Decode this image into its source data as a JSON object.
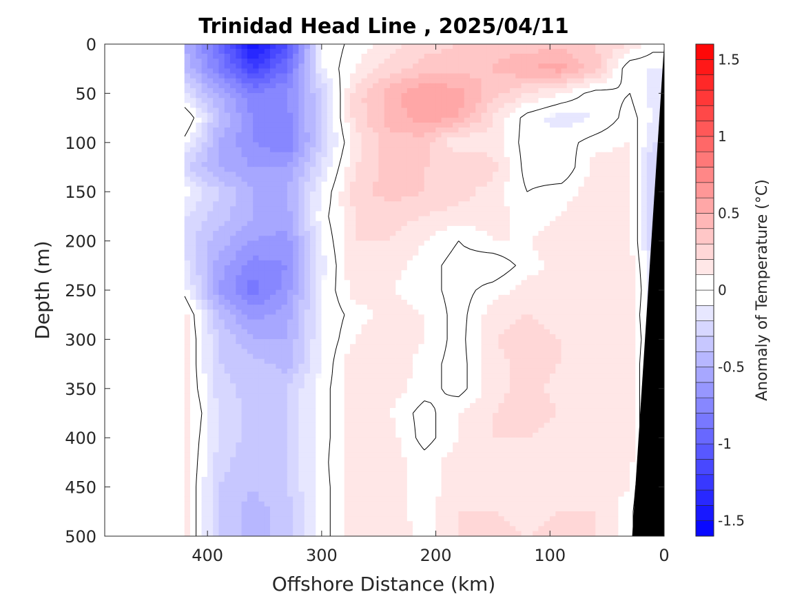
{
  "chart_data": {
    "type": "heatmap",
    "title": "Trinidad Head Line , 2025/04/11",
    "xlabel": "Offshore Distance (km)",
    "ylabel": "Depth (m)",
    "xlim": [
      490,
      0
    ],
    "ylim": [
      0,
      500
    ],
    "x_reversed": true,
    "y_reversed": true,
    "x_ticks": [
      400,
      300,
      200,
      100,
      0
    ],
    "y_ticks": [
      0,
      50,
      100,
      150,
      200,
      250,
      300,
      350,
      400,
      450,
      500
    ],
    "colorbar": {
      "label": "Anomaly of Temperature (°C)",
      "range": [
        -1.6,
        1.6
      ],
      "step": 0.1,
      "ticks": [
        -1.5,
        -1,
        -0.5,
        0,
        0.5,
        1,
        1.5
      ],
      "tick_labels": [
        "-1.5",
        "-1",
        "-0.5",
        "0",
        "0.5",
        "1",
        "1.5"
      ],
      "colormap": "blue-white-red"
    },
    "x": [
      420,
      390,
      360,
      330,
      300,
      270,
      240,
      210,
      180,
      150,
      120,
      90,
      60,
      30,
      10
    ],
    "y": [
      0,
      25,
      50,
      75,
      100,
      125,
      150,
      175,
      200,
      225,
      250,
      275,
      300,
      325,
      350,
      375,
      400,
      425,
      450,
      475,
      500
    ],
    "z": [
      [
        -0.5,
        -0.9,
        -1.5,
        -1.1,
        -0.1,
        0.05,
        0.15,
        0.25,
        0.3,
        0.35,
        0.35,
        0.35,
        0.3,
        0.2,
        0.05
      ],
      [
        -0.4,
        -0.8,
        -1.2,
        -0.9,
        -0.1,
        0.1,
        0.25,
        0.35,
        0.35,
        0.4,
        0.5,
        0.55,
        0.35,
        -0.1,
        -0.1
      ],
      [
        -0.2,
        -0.5,
        -0.8,
        -0.7,
        -0.3,
        0.25,
        0.45,
        0.6,
        0.55,
        0.35,
        0.2,
        0.1,
        -0.05,
        0.0,
        -0.15
      ],
      [
        0.15,
        -0.4,
        -0.7,
        -0.75,
        -0.3,
        0.25,
        0.45,
        0.55,
        0.5,
        0.2,
        -0.05,
        -0.15,
        -0.1,
        0.05,
        -0.1
      ],
      [
        -0.05,
        -0.5,
        -0.7,
        -0.8,
        -0.3,
        0.15,
        0.35,
        0.35,
        0.1,
        0.15,
        -0.05,
        -0.05,
        0.05,
        0.1,
        -0.2
      ],
      [
        -0.3,
        -0.5,
        -0.6,
        -0.6,
        -0.2,
        0.2,
        0.35,
        0.3,
        0.3,
        0.25,
        -0.05,
        -0.1,
        0.15,
        0.15,
        -0.3
      ],
      [
        -0.05,
        -0.3,
        -0.5,
        -0.5,
        -0.1,
        0.25,
        0.35,
        0.3,
        0.25,
        0.15,
        0.0,
        0.05,
        0.15,
        0.15,
        -0.3
      ],
      [
        -0.2,
        -0.35,
        -0.5,
        -0.55,
        -0.05,
        0.2,
        0.25,
        0.2,
        0.15,
        0.15,
        0.05,
        0.1,
        0.2,
        0.15,
        -0.3
      ],
      [
        -0.25,
        -0.45,
        -0.6,
        -0.65,
        -0.1,
        0.2,
        0.2,
        0.1,
        0.0,
        0.1,
        0.1,
        0.15,
        0.2,
        0.15,
        -0.3
      ],
      [
        -0.15,
        -0.55,
        -0.75,
        -0.7,
        -0.15,
        0.2,
        0.15,
        0.05,
        -0.05,
        -0.1,
        0.05,
        0.15,
        0.2,
        0.15,
        -0.2
      ],
      [
        -0.05,
        -0.6,
        -0.85,
        -0.65,
        -0.1,
        0.15,
        0.1,
        0.05,
        -0.05,
        0.05,
        0.15,
        0.15,
        0.2,
        0.2,
        -0.2
      ],
      [
        0.15,
        -0.4,
        -0.65,
        -0.55,
        -0.1,
        0.05,
        0.15,
        0.1,
        -0.05,
        0.15,
        0.2,
        0.15,
        0.15,
        0.15,
        -0.2
      ],
      [
        0.15,
        -0.3,
        -0.5,
        -0.5,
        -0.1,
        0.1,
        0.2,
        0.1,
        -0.05,
        0.2,
        0.25,
        0.2,
        0.15,
        0.15,
        -0.15
      ],
      [
        0.15,
        -0.3,
        -0.35,
        -0.45,
        -0.1,
        0.2,
        0.2,
        0.05,
        -0.05,
        0.15,
        0.25,
        0.2,
        0.15,
        0.15,
        -0.2
      ],
      [
        0.15,
        -0.25,
        -0.35,
        -0.3,
        -0.05,
        0.15,
        0.15,
        0.05,
        -0.05,
        0.15,
        0.25,
        0.15,
        0.15,
        0.15,
        -0.2
      ],
      [
        0.2,
        -0.2,
        -0.35,
        -0.3,
        -0.05,
        0.15,
        0.1,
        -0.05,
        0.1,
        0.2,
        0.25,
        0.2,
        0.15,
        0.15,
        -0.2
      ],
      [
        0.15,
        -0.2,
        -0.35,
        -0.3,
        -0.05,
        0.15,
        0.15,
        -0.05,
        0.1,
        0.2,
        0.2,
        0.15,
        0.15,
        0.15,
        -0.2
      ],
      [
        0.15,
        -0.25,
        -0.4,
        -0.3,
        -0.05,
        0.2,
        0.15,
        0.05,
        0.15,
        0.2,
        0.15,
        0.2,
        0.15,
        0.15,
        -0.25
      ],
      [
        0.15,
        -0.3,
        -0.4,
        -0.3,
        -0.05,
        0.15,
        0.15,
        0.05,
        0.15,
        0.2,
        0.2,
        0.2,
        0.15,
        0.1,
        -0.3
      ],
      [
        0.15,
        -0.3,
        -0.45,
        -0.35,
        -0.05,
        0.15,
        0.15,
        0.05,
        0.2,
        0.2,
        0.15,
        0.2,
        0.2,
        0.05,
        -0.3
      ],
      [
        0.15,
        -0.3,
        -0.45,
        -0.35,
        -0.05,
        0.15,
        0.2,
        0.05,
        0.2,
        0.25,
        0.2,
        0.25,
        0.2,
        0.05,
        -0.3
      ]
    ],
    "data_x_max": 420,
    "contour_levels": [
      0
    ],
    "bottom_mask": {
      "description_free": true,
      "points": [
        [
          0,
          0
        ],
        [
          0,
          500
        ],
        [
          28,
          500
        ]
      ]
    },
    "grid": false
  }
}
